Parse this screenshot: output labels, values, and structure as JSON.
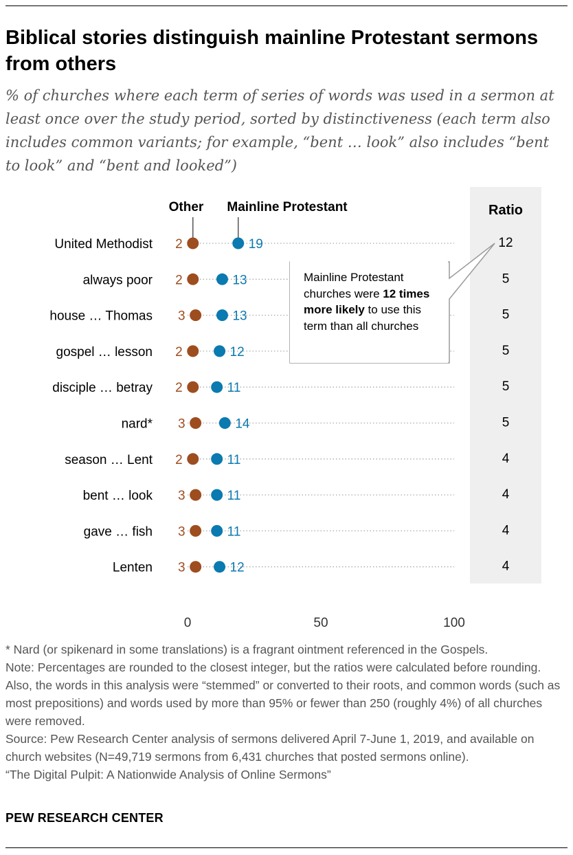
{
  "title": "Biblical stories distinguish mainline Protestant sermons from others",
  "subtitle": "% of churches where each term of series of words was used in a sermon at least once over the study period, sorted by distinctiveness (each term also includes common variants; for example, “bent … look” also includes “bent to look” and “bent and looked”)",
  "colors": {
    "other": "#9E4D1F",
    "mainline": "#0A7AB0",
    "ratio_bg": "#EFEFEF",
    "text_gray": "#555555"
  },
  "chart_data": {
    "type": "scatter",
    "title": "Biblical stories distinguish mainline Protestant sermons from others",
    "categories": [
      "United Methodist",
      "always poor",
      "house … Thomas",
      "gospel … lesson",
      "disciple … betray",
      "nard*",
      "season … Lent",
      "bent … look",
      "gave … fish",
      "Lenten"
    ],
    "series": [
      {
        "name": "Other",
        "values": [
          2,
          2,
          3,
          2,
          2,
          3,
          2,
          3,
          3,
          3
        ]
      },
      {
        "name": "Mainline Protestant",
        "values": [
          19,
          13,
          13,
          12,
          11,
          14,
          11,
          11,
          11,
          12
        ]
      }
    ],
    "ratio_label": "Ratio",
    "ratios": [
      "12",
      "5",
      "5",
      "5",
      "5",
      "5",
      "4",
      "4",
      "4",
      "4"
    ],
    "x_ticks": [
      0,
      50,
      100
    ],
    "xlim": [
      0,
      100
    ],
    "legend_placement": "top"
  },
  "callout": {
    "before": "Mainline Protestant churches were ",
    "bold": "12 times more likely",
    "after": " to use this term than all churches"
  },
  "footnotes": [
    "* Nard (or spikenard in some translations) is a fragrant ointment referenced in the Gospels.",
    "Note: Percentages are rounded to the closest integer, but the ratios were calculated before rounding. Also, the words in this analysis were “stemmed” or converted to their roots, and common words (such as most prepositions) and words used by more than 95% or fewer than 250 (roughly 4%) of all churches were removed.",
    "Source: Pew Research Center analysis of sermons delivered April 7-June 1, 2019, and available on church websites (N=49,719 sermons from 6,431 churches that posted sermons online).",
    "“The Digital Pulpit: A Nationwide Analysis of Online Sermons”"
  ],
  "brand": "PEW RESEARCH CENTER"
}
